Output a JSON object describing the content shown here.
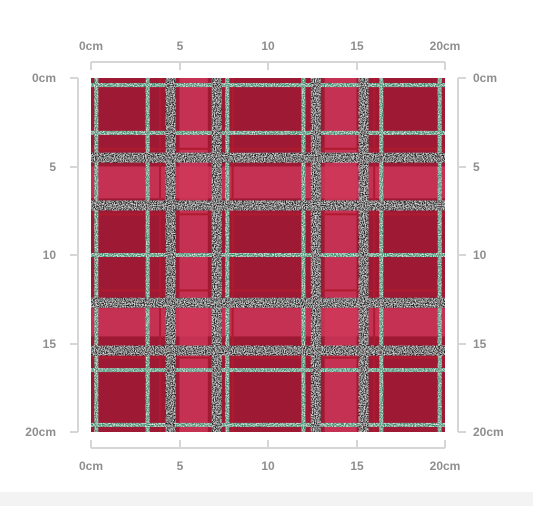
{
  "rulers": {
    "unit_max": 20,
    "top": [
      "0cm",
      "5",
      "10",
      "15",
      "20cm"
    ],
    "bottom": [
      "0cm",
      "5",
      "10",
      "15",
      "20cm"
    ],
    "left": [
      "0cm",
      "5",
      "10",
      "15",
      "20cm"
    ],
    "right": [
      "0cm",
      "5",
      "10",
      "15",
      "20cm"
    ]
  },
  "pattern": {
    "name": "red-tartan-plaid",
    "colors": {
      "base": "#9e1a34",
      "light_band": "#d13a5c",
      "dark_line": "#1c1e1e",
      "green_line": "#2e8a69",
      "red_line": "#b01a2e"
    },
    "vertical_light_bands_cm": [
      [
        5.0,
        6.6
      ],
      [
        13.2,
        15.0
      ]
    ],
    "horizontal_light_bands_cm": [
      [
        5.0,
        6.8
      ],
      [
        13.0,
        14.6
      ]
    ],
    "vertical_black_lines_cm": [
      4.5,
      7.1,
      12.7,
      15.4
    ],
    "horizontal_black_lines_cm": [
      4.5,
      7.2,
      12.7,
      15.4
    ],
    "vertical_green_lines_cm": [
      0.3,
      3.2,
      7.7,
      12.0,
      16.4,
      19.7
    ],
    "horizontal_green_lines_cm": [
      0.4,
      3.1,
      10.0,
      16.5,
      19.6
    ],
    "vertical_red_lines_cm": [
      3.9,
      8.0,
      12.0,
      16.0
    ],
    "horizontal_red_lines_cm": [
      4.0,
      7.7,
      12.0,
      15.8
    ]
  }
}
